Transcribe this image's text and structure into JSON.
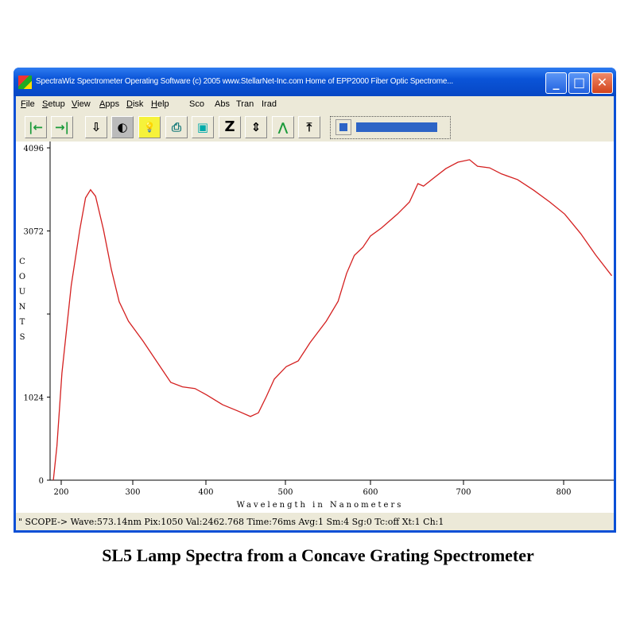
{
  "window": {
    "title": "SpectraWiz  Spectrometer Operating Software (c) 2005  www.StellarNet-Inc.com  Home of EPP2000 Fiber Optic Spectrome...",
    "minimize": "_",
    "maximize": "□",
    "close": "✕"
  },
  "menu": [
    "File",
    "Setup",
    "View",
    "Apps",
    "Disk",
    "Help",
    "Sco",
    "Abs",
    "Tran",
    "Irad"
  ],
  "toolbar": {
    "buttons": [
      {
        "icon": "arrow-left-bar-icon",
        "glyph": "|←"
      },
      {
        "icon": "arrow-right-bar-icon",
        "glyph": "→|"
      },
      {
        "icon": "save-download-icon",
        "glyph": "⇩"
      },
      {
        "icon": "dark-bulb-icon",
        "glyph": "◐"
      },
      {
        "icon": "light-bulb-icon",
        "glyph": "💡"
      },
      {
        "icon": "printer-icon",
        "glyph": "⎙"
      },
      {
        "icon": "camera-icon",
        "glyph": "▣"
      },
      {
        "icon": "z-zoom-icon",
        "glyph": "Z"
      },
      {
        "icon": "autoscale-vertical-icon",
        "glyph": "⇕"
      },
      {
        "icon": "peak-icon",
        "glyph": "⋀"
      },
      {
        "icon": "baseline-up-icon",
        "glyph": "⤒"
      }
    ],
    "slider_level": 0.1
  },
  "status": "\" SCOPE->  Wave:573.14nm  Pix:1050  Val:2462.768  Time:76ms  Avg:1  Sm:4  Sg:0  Tc:off  Xt:1  Ch:1",
  "caption": "SL5 Lamp Spectra from a Concave Grating Spectrometer",
  "chart_data": {
    "type": "line",
    "xlabel": "Wavelength in Nanometers",
    "ylabel": "COUNTS",
    "x_ticks": [
      200,
      300,
      400,
      500,
      600,
      700,
      800
    ],
    "y_ticks": [
      {
        "v": 0,
        "label": "0"
      },
      {
        "v": 1024,
        "label": "1024"
      },
      {
        "v": 2048,
        "label": ""
      },
      {
        "v": 3072,
        "label": "3072"
      },
      {
        "v": 4096,
        "label": "4096"
      }
    ],
    "ylim": [
      0,
      4096
    ],
    "xlim": [
      189,
      848
    ],
    "line_color": "#d42020",
    "x": [
      189,
      194,
      201,
      214,
      226,
      234,
      241,
      248,
      259,
      270,
      281,
      294,
      314,
      336,
      352,
      368,
      385,
      401,
      421,
      441,
      456,
      466,
      476,
      486,
      501,
      515,
      529,
      548,
      562,
      572,
      581,
      591,
      600,
      612,
      629,
      642,
      651,
      657,
      668,
      681,
      694,
      706,
      714,
      726,
      738,
      754,
      770,
      786,
      801,
      817,
      832,
      848
    ],
    "y": [
      0,
      420,
      1320,
      2400,
      3090,
      3480,
      3580,
      3500,
      3090,
      2600,
      2200,
      1960,
      1715,
      1420,
      1205,
      1150,
      1130,
      1050,
      930,
      850,
      785,
      830,
      1030,
      1245,
      1400,
      1470,
      1695,
      1960,
      2205,
      2550,
      2770,
      2870,
      3010,
      3110,
      3280,
      3430,
      3655,
      3625,
      3725,
      3840,
      3920,
      3950,
      3870,
      3850,
      3775,
      3705,
      3575,
      3430,
      3280,
      3040,
      2775,
      2520
    ]
  }
}
